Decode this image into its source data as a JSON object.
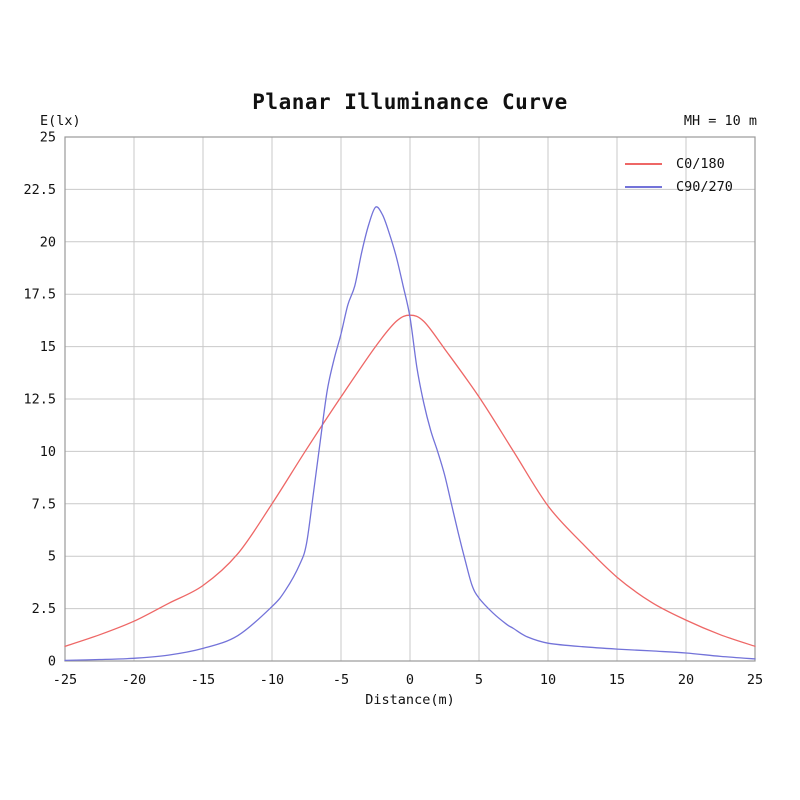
{
  "header": {
    "title": "Planar Illuminance Curve",
    "y_unit": "E(lx)",
    "annotation": "MH = 10 m"
  },
  "chart_data": {
    "type": "line",
    "title": "Planar Illuminance Curve",
    "xlabel": "Distance(m)",
    "ylabel": "E(lx)",
    "annotation": "MH = 10 m",
    "xlim": [
      -25,
      25
    ],
    "ylim": [
      0,
      25
    ],
    "x_ticks": [
      -25,
      -20,
      -15,
      -10,
      -5,
      0,
      5,
      10,
      15,
      20,
      25
    ],
    "y_ticks": [
      0,
      2.5,
      5,
      7.5,
      10,
      12.5,
      15,
      17.5,
      20,
      22.5,
      25
    ],
    "grid": true,
    "grid_color": "#c9c9c9",
    "border_color": "#999999",
    "legend_position": "top-right",
    "series": [
      {
        "name": "C0/180",
        "color": "#ee6766",
        "x": [
          -25,
          -22.5,
          -20,
          -17.5,
          -15,
          -12.5,
          -10,
          -7.5,
          -5,
          -2.5,
          -1,
          0,
          1,
          2.5,
          5,
          7.5,
          10,
          12.5,
          15,
          17.5,
          20,
          22.5,
          25
        ],
        "y": [
          0.7,
          1.25,
          1.9,
          2.75,
          3.6,
          5.1,
          7.5,
          10.1,
          12.6,
          15.0,
          16.2,
          16.5,
          16.2,
          14.9,
          12.6,
          10.0,
          7.4,
          5.6,
          4.0,
          2.8,
          1.95,
          1.25,
          0.7
        ]
      },
      {
        "name": "C90/270",
        "color": "#7373d9",
        "x": [
          -25,
          -22.5,
          -20,
          -17.5,
          -15,
          -12.5,
          -10,
          -9,
          -8,
          -7.5,
          -7,
          -6.5,
          -6,
          -5.5,
          -5,
          -4.5,
          -4,
          -3.5,
          -3,
          -2.5,
          -2,
          -1.5,
          -1,
          -0.5,
          0,
          0.5,
          1,
          1.5,
          2,
          2.5,
          3,
          3.5,
          4,
          4.5,
          5,
          6,
          7,
          7.5,
          8.5,
          10,
          12.5,
          15,
          17.5,
          20,
          22.5,
          25
        ],
        "y": [
          0.03,
          0.07,
          0.13,
          0.28,
          0.6,
          1.2,
          2.6,
          3.4,
          4.6,
          5.6,
          8.0,
          10.5,
          12.9,
          14.4,
          15.6,
          17.0,
          17.9,
          19.5,
          20.8,
          21.65,
          21.3,
          20.4,
          19.3,
          17.9,
          16.4,
          14.0,
          12.3,
          11.0,
          10.0,
          8.9,
          7.5,
          6.1,
          4.8,
          3.6,
          3.0,
          2.3,
          1.75,
          1.55,
          1.15,
          0.85,
          0.68,
          0.57,
          0.48,
          0.38,
          0.22,
          0.1
        ]
      }
    ]
  }
}
